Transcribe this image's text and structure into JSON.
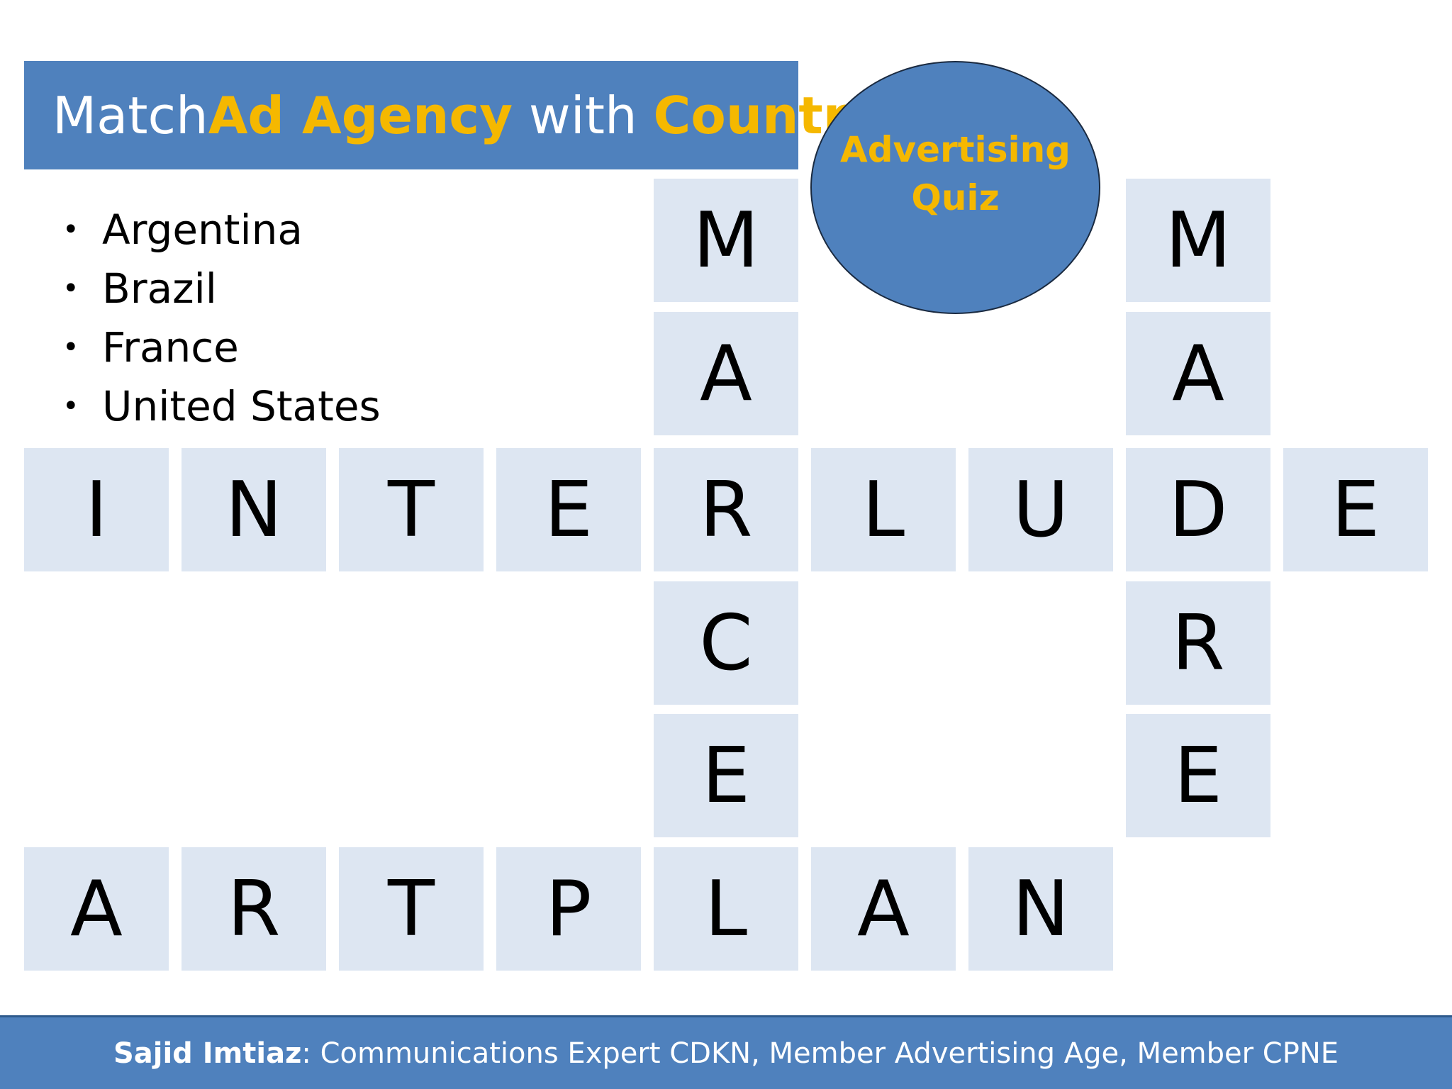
{
  "title": {
    "part1": "Match ",
    "highlight1": "Ad Agency",
    "part2": " with ",
    "highlight2": "Country"
  },
  "badge": {
    "line1": "Advertising",
    "line2": "Quiz"
  },
  "countries": [
    "Argentina",
    "Brazil",
    "France",
    "United States"
  ],
  "puzzle": {
    "row_interlude": [
      "I",
      "N",
      "T",
      "E",
      "R",
      "L",
      "U",
      "D",
      "E"
    ],
    "row_artplan": [
      "A",
      "R",
      "T",
      "P",
      "L",
      "A",
      "N"
    ],
    "col_marcel_top": [
      "M",
      "A"
    ],
    "col_marcel_bottom": [
      "C",
      "E"
    ],
    "col_madre_top": [
      "M",
      "A"
    ],
    "col_madre_bottom": [
      "R",
      "E"
    ]
  },
  "footer": {
    "name": "Sajid Imtiaz",
    "rest": ": Communications Expert CDKN, Member Advertising Age, Member CPNE"
  },
  "colors": {
    "blue": "#4f81bd",
    "gold": "#f5b800",
    "tile": "#dde6f2"
  }
}
